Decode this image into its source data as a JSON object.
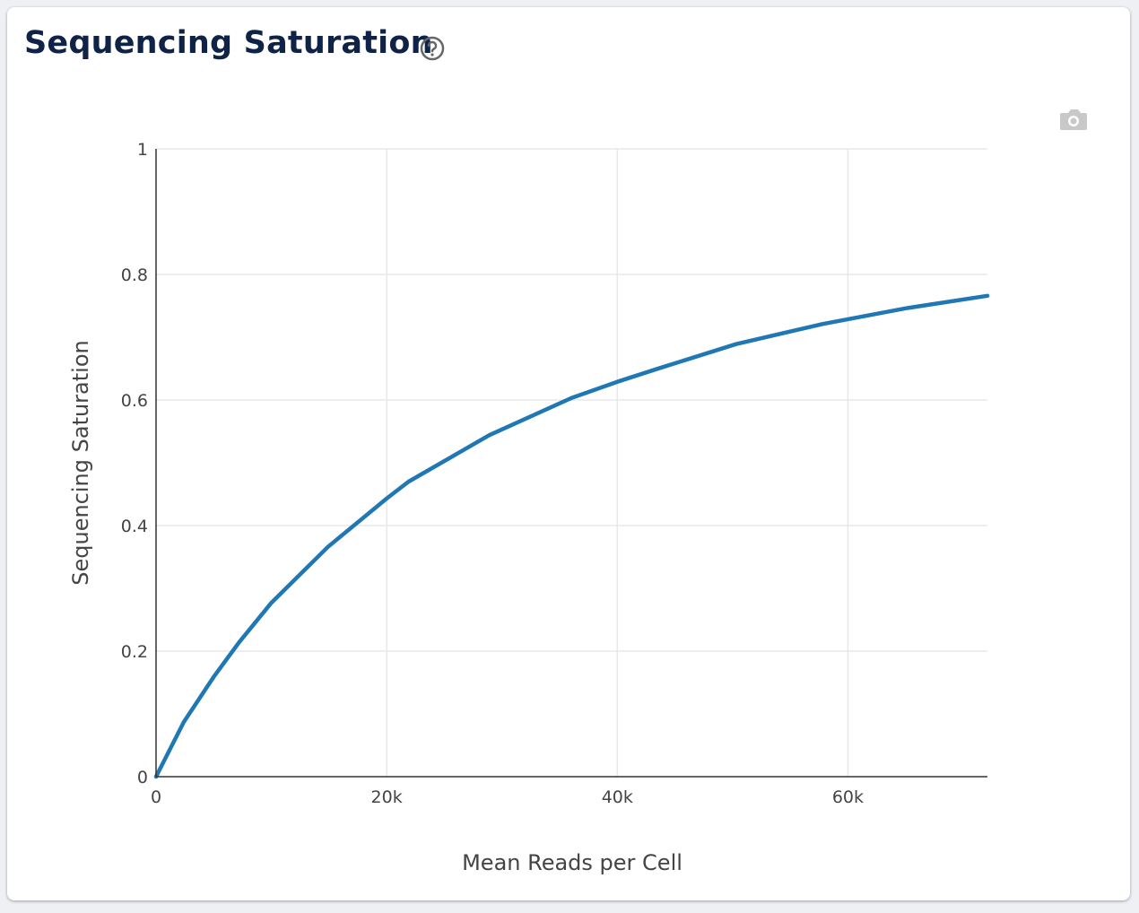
{
  "card": {
    "title": "Sequencing Saturation",
    "help_icon": "question-circle-icon",
    "toolbar_icon": "camera-icon"
  },
  "chart_data": {
    "type": "line",
    "title": "",
    "xlabel": "Mean Reads per Cell",
    "ylabel": "Sequencing Saturation",
    "xlim": [
      0,
      72100
    ],
    "ylim": [
      0,
      1
    ],
    "xticks": [
      {
        "v": 0,
        "label": "0"
      },
      {
        "v": 20000,
        "label": "20k"
      },
      {
        "v": 40000,
        "label": "40k"
      },
      {
        "v": 60000,
        "label": "60k"
      }
    ],
    "yticks": [
      {
        "v": 0,
        "label": "0"
      },
      {
        "v": 0.2,
        "label": "0.2"
      },
      {
        "v": 0.4,
        "label": "0.4"
      },
      {
        "v": 0.6,
        "label": "0.6"
      },
      {
        "v": 0.8,
        "label": "0.8"
      },
      {
        "v": 1,
        "label": "1"
      }
    ],
    "grid": true,
    "line_color": "#1f77b4",
    "series": [
      {
        "x": [
          0,
          2400,
          5000,
          7200,
          10000,
          14900,
          20000,
          21900,
          28900,
          36000,
          40000,
          43700,
          50300,
          57800,
          65000,
          72100
        ],
        "y": [
          0,
          0.087,
          0.159,
          0.214,
          0.277,
          0.366,
          0.443,
          0.47,
          0.544,
          0.603,
          0.629,
          0.651,
          0.689,
          0.721,
          0.746,
          0.766
        ]
      }
    ]
  }
}
